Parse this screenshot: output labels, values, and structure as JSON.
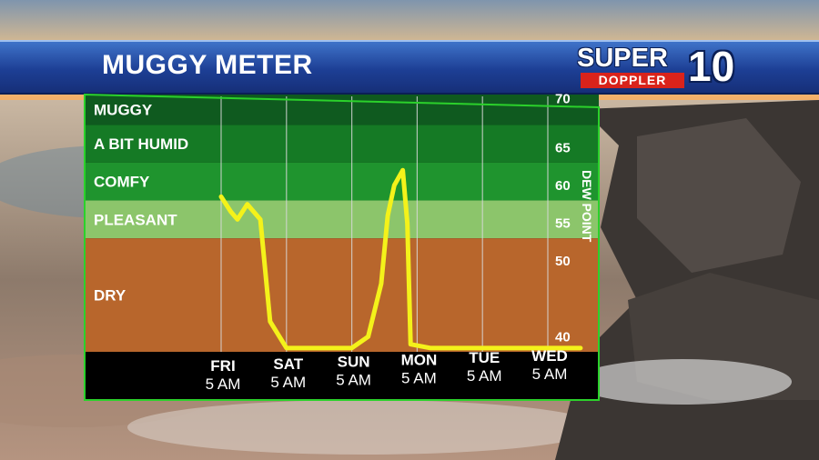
{
  "header": {
    "title": "MUGGY METER"
  },
  "logo": {
    "super": "SUPER",
    "doppler": "DOPPLER",
    "number": "10"
  },
  "chart_data": {
    "type": "line",
    "title": "MUGGY METER",
    "ylabel": "DEW POINT",
    "ylim": [
      38,
      72
    ],
    "yticks": [
      40,
      50,
      55,
      60,
      65,
      70
    ],
    "bands": [
      {
        "label": "MUGGY",
        "from": 68,
        "to": 72,
        "color": "#0f5a1f"
      },
      {
        "label": "A BIT HUMID",
        "from": 63,
        "to": 68,
        "color": "#157a25"
      },
      {
        "label": "COMFY",
        "from": 58,
        "to": 63,
        "color": "#1f942e"
      },
      {
        "label": "PLEASANT",
        "from": 53,
        "to": 58,
        "color": "#8cc56b"
      },
      {
        "label": "DRY",
        "from": 38,
        "to": 53,
        "color": "#b8662c"
      }
    ],
    "categories": [
      {
        "day": "FRI",
        "time": "5 AM"
      },
      {
        "day": "SAT",
        "time": "5 AM"
      },
      {
        "day": "SUN",
        "time": "5 AM"
      },
      {
        "day": "MON",
        "time": "5 AM"
      },
      {
        "day": "TUE",
        "time": "5 AM"
      },
      {
        "day": "WED",
        "time": "5 AM"
      }
    ],
    "series": [
      {
        "color": "#f4f21a",
        "x": [
          0.0,
          0.15,
          0.25,
          0.4,
          0.6,
          0.75,
          1.0,
          1.5,
          2.0,
          2.25,
          2.45,
          2.55,
          2.65,
          2.78,
          2.85,
          2.9,
          3.2,
          4.0,
          5.0,
          5.5
        ],
        "y": [
          58.5,
          56.5,
          55.5,
          57.5,
          55.5,
          42,
          38.5,
          38.5,
          38.5,
          40,
          47,
          56,
          60,
          62,
          55,
          39,
          38.5,
          38.5,
          38.5,
          38.5
        ]
      }
    ]
  }
}
